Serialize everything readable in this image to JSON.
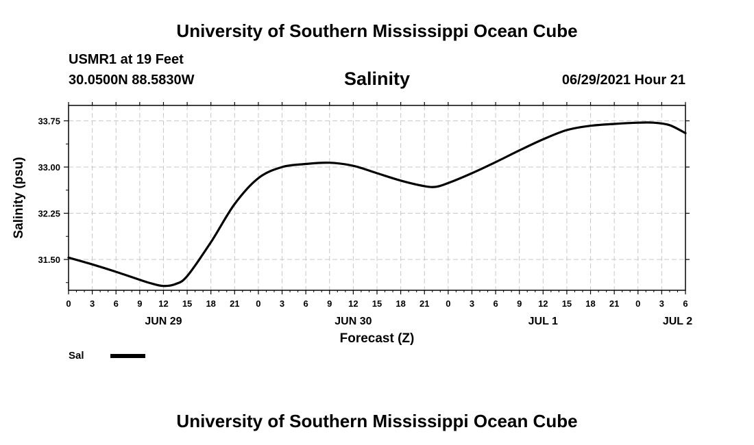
{
  "header": {
    "title": "University of Southern Mississippi Ocean Cube",
    "station": "USMR1 at 19 Feet",
    "coordinates": "30.0500N  88.5830W",
    "variable": "Salinity",
    "datetime": "06/29/2021 Hour 21"
  },
  "footer": {
    "title": "University of Southern Mississippi Ocean Cube"
  },
  "chart_data": {
    "type": "line",
    "title": "Salinity",
    "xlabel": "Forecast (Z)",
    "ylabel": "Salinity (psu)",
    "x_unit": "hours since 2021-06-29 00Z",
    "xlim": [
      0,
      78
    ],
    "ylim": [
      31.0,
      34.0
    ],
    "grid": true,
    "x_ticks": [
      {
        "x": 0,
        "label": "0"
      },
      {
        "x": 3,
        "label": "3"
      },
      {
        "x": 6,
        "label": "6"
      },
      {
        "x": 9,
        "label": "9"
      },
      {
        "x": 12,
        "label": "12"
      },
      {
        "x": 15,
        "label": "15"
      },
      {
        "x": 18,
        "label": "18"
      },
      {
        "x": 21,
        "label": "21"
      },
      {
        "x": 24,
        "label": "0"
      },
      {
        "x": 27,
        "label": "3"
      },
      {
        "x": 30,
        "label": "6"
      },
      {
        "x": 33,
        "label": "9"
      },
      {
        "x": 36,
        "label": "12"
      },
      {
        "x": 39,
        "label": "15"
      },
      {
        "x": 42,
        "label": "18"
      },
      {
        "x": 45,
        "label": "21"
      },
      {
        "x": 48,
        "label": "0"
      },
      {
        "x": 51,
        "label": "3"
      },
      {
        "x": 54,
        "label": "6"
      },
      {
        "x": 57,
        "label": "9"
      },
      {
        "x": 60,
        "label": "12"
      },
      {
        "x": 63,
        "label": "15"
      },
      {
        "x": 66,
        "label": "18"
      },
      {
        "x": 69,
        "label": "21"
      },
      {
        "x": 72,
        "label": "0"
      },
      {
        "x": 75,
        "label": "3"
      },
      {
        "x": 78,
        "label": "6"
      }
    ],
    "date_labels": [
      {
        "x": 12,
        "label": "JUN 29"
      },
      {
        "x": 36,
        "label": "JUN 30"
      },
      {
        "x": 60,
        "label": "JUL 1"
      },
      {
        "x": 77,
        "label": "JUL 2"
      }
    ],
    "y_ticks": [
      {
        "y": 31.5,
        "label": "31.50"
      },
      {
        "y": 32.25,
        "label": "32.25"
      },
      {
        "y": 33.0,
        "label": "33.00"
      },
      {
        "y": 33.75,
        "label": "33.75"
      }
    ],
    "series": [
      {
        "name": "Sal",
        "color": "#000000",
        "x": [
          0,
          3,
          6,
          9,
          10.5,
          12,
          13.5,
          15,
          18,
          21,
          24,
          27,
          30,
          33,
          36,
          39,
          42,
          45,
          46.5,
          48,
          51,
          54,
          57,
          60,
          63,
          66,
          69,
          72,
          74,
          76,
          78
        ],
        "y": [
          31.53,
          31.42,
          31.3,
          31.17,
          31.11,
          31.07,
          31.1,
          31.23,
          31.78,
          32.4,
          32.82,
          33.0,
          33.05,
          33.07,
          33.02,
          32.9,
          32.78,
          32.69,
          32.68,
          32.74,
          32.9,
          33.08,
          33.27,
          33.45,
          33.6,
          33.67,
          33.7,
          33.72,
          33.72,
          33.68,
          33.55
        ]
      }
    ],
    "legend": {
      "position": "below-left",
      "entries": [
        "Sal"
      ]
    }
  }
}
